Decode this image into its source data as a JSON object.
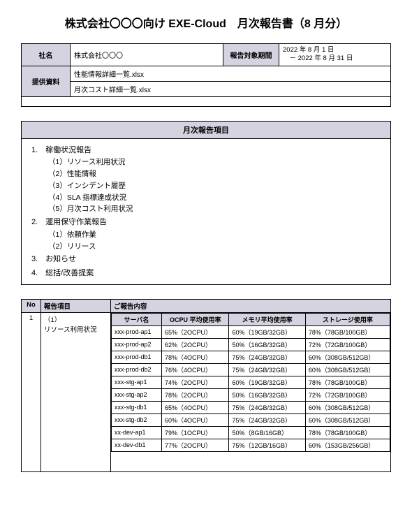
{
  "title": "株式会社〇〇〇向け EXE-Cloud　月次報告書（8 月分）",
  "colors": {
    "header_bg": "#d6d3e0",
    "border": "#000000",
    "bg": "#ffffff",
    "text": "#000000"
  },
  "info": {
    "company_label": "社名",
    "company_value": "株式会社〇〇〇",
    "period_label": "報告対象期間",
    "period_value_line1": "2022 年 8 月 1 日",
    "period_value_line2": "　－ 2022 年 8 月 31 日",
    "materials_label": "提供資料",
    "material1": "性能情報詳細一覧.xlsx",
    "material2": "月次コスト詳細一覧.xlsx"
  },
  "agenda": {
    "header": "月次報告項目",
    "item1": "1.　稼働状況報告",
    "item1_1": "（1）リソース利用状況",
    "item1_2": "（2）性能情報",
    "item1_3": "（3）インシデント履歴",
    "item1_4": "（4）SLA 指標達成状況",
    "item1_5": "（5）月次コスト利用状況",
    "item2": "2.　運用保守作業報告",
    "item2_1": "（1）依頼作業",
    "item2_2": "（2）リリース",
    "item3": "3.　お知らせ",
    "item4": "4.　総括/改善提案"
  },
  "detail": {
    "no_header": "No",
    "item_header": "報告項目",
    "content_header": "ご報告内容",
    "no_value": "1",
    "item_line1": "（1）",
    "item_line2": "リソース利用状況",
    "server_header": "サーバ名",
    "ocpu_header": "OCPU 平均使用率",
    "memory_header": "メモリ平均使用率",
    "storage_header": "ストレージ使用率",
    "rows": [
      {
        "server": "xxx-prod-ap1",
        "ocpu": "65%（2OCPU）",
        "memory": "60%（19GB/32GB）",
        "storage": "78%（78GB/100GB）"
      },
      {
        "server": "xxx-prod-ap2",
        "ocpu": "62%（2OCPU）",
        "memory": "50%（16GB/32GB）",
        "storage": "72%（72GB/100GB）"
      },
      {
        "server": "xxx-prod-db1",
        "ocpu": "78%（4OCPU）",
        "memory": "75%（24GB/32GB）",
        "storage": "60%（308GB/512GB）"
      },
      {
        "server": "xxx-prod-db2",
        "ocpu": "76%（4OCPU）",
        "memory": "75%（24GB/32GB）",
        "storage": "60%（308GB/512GB）"
      },
      {
        "server": "xxx-stg-ap1",
        "ocpu": "74%（2OCPU）",
        "memory": "60%（19GB/32GB）",
        "storage": "78%（78GB/100GB）"
      },
      {
        "server": "xxx-stg-ap2",
        "ocpu": "78%（2OCPU）",
        "memory": "50%（16GB/32GB）",
        "storage": "72%（72GB/100GB）"
      },
      {
        "server": "xxx-stg-db1",
        "ocpu": "65%（4OCPU）",
        "memory": "75%（24GB/32GB）",
        "storage": "60%（308GB/512GB）"
      },
      {
        "server": "xxx-stg-db2",
        "ocpu": "60%（4OCPU）",
        "memory": "75%（24GB/32GB）",
        "storage": "60%（308GB/512GB）"
      },
      {
        "server": "xx-dev-ap1",
        "ocpu": "79%（1OCPU）",
        "memory": "50%（8GB/16GB）",
        "storage": "78%（78GB/100GB）"
      },
      {
        "server": "xx-dev-db1",
        "ocpu": "77%（2OCPU）",
        "memory": "75%（12GB/16GB）",
        "storage": "60%（153GB/256GB）"
      }
    ]
  }
}
